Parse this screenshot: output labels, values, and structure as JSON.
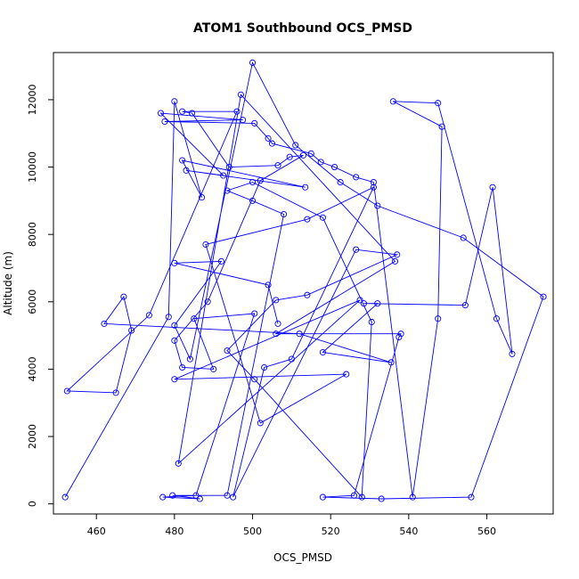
{
  "chart_data": {
    "type": "line",
    "title": "ATOM1 Southbound OCS_PMSD",
    "xlabel": "OCS_PMSD",
    "ylabel": "Altitude (m)",
    "xlim": [
      449,
      577
    ],
    "ylim": [
      -300,
      13400
    ],
    "xticks": [
      460,
      480,
      500,
      520,
      540,
      560
    ],
    "yticks": [
      0,
      2000,
      4000,
      6000,
      8000,
      10000,
      12000
    ],
    "grid": false,
    "color": "#0000ff",
    "marker": "open-circle",
    "series": [
      {
        "name": "",
        "x": [
          452,
          478.5,
          480,
          487,
          482,
          513.5,
          483,
          492.5,
          476.5,
          497.5,
          477.5,
          500.5,
          504,
          505,
          515,
          517.5,
          521,
          526.5,
          531,
          541,
          547.5,
          548.5,
          536,
          547.5,
          562.5,
          566.5,
          561.5,
          554.5,
          528.5,
          532,
          518,
          535.5,
          512,
          462,
          467,
          469,
          465,
          452.5,
          473.5,
          496,
          482,
          484.5,
          494,
          506.5,
          509.5,
          513,
          502,
          488.5,
          480,
          482,
          490,
          485,
          500.5,
          485.5,
          477,
          486.5,
          479.5,
          493.5,
          508,
          500,
          493.5,
          500,
          518,
          530.5,
          528,
          500.5,
          493.5,
          506,
          514,
          537,
          526.5,
          495,
          503,
          510,
          531,
          514,
          488,
          502,
          524,
          480,
          527.5,
          481,
          497,
          536.5,
          506,
          538,
          537.5,
          526,
          518,
          533,
          556,
          574.5,
          554,
          532,
          522.5,
          511,
          500,
          484,
          480,
          492,
          480,
          504,
          506.5
        ],
        "y": [
          200,
          5550,
          11950,
          9100,
          10200,
          9400,
          9900,
          9750,
          11600,
          11400,
          11350,
          11300,
          10850,
          10700,
          10400,
          10150,
          10000,
          9700,
          9550,
          200,
          5500,
          11200,
          11950,
          11900,
          5500,
          4450,
          9400,
          5900,
          5950,
          5950,
          4500,
          4200,
          5050,
          5350,
          6150,
          5150,
          3300,
          3350,
          5600,
          11650,
          11650,
          11600,
          10000,
          10050,
          10300,
          10350,
          9600,
          6000,
          4850,
          4050,
          4000,
          5500,
          5650,
          250,
          200,
          150,
          250,
          250,
          8600,
          9000,
          9300,
          9550,
          8500,
          5400,
          200,
          3700,
          4550,
          6050,
          6200,
          7400,
          7550,
          200,
          4050,
          4300,
          9400,
          8450,
          7700,
          2400,
          3850,
          3700,
          6050,
          1200,
          12150,
          7200,
          5050,
          5050,
          4950,
          250,
          200,
          150,
          200,
          6150,
          7900,
          8850,
          9550,
          10650,
          13100,
          4300,
          5300,
          7200,
          7150,
          6500,
          5350
        ]
      }
    ]
  }
}
